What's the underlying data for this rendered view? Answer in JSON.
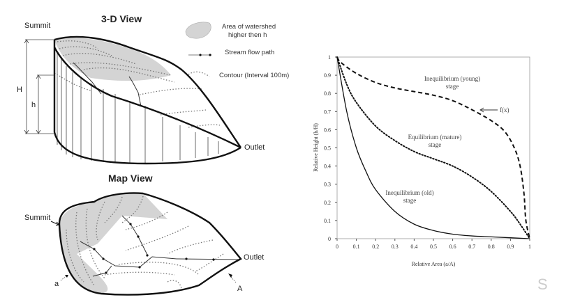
{
  "diagram_3d": {
    "title": "3-D View",
    "summit_label": "Summit",
    "outlet_label": "Outlet",
    "H_label": "H",
    "h_label": "h"
  },
  "legend": {
    "area_label_line1": "Area of watershed",
    "area_label_line2": "higher then h",
    "stream_label": "Stream flow path",
    "contour_label": "Contour (Interval 100m)"
  },
  "map_view": {
    "title": "Map View",
    "summit_label": "Summit",
    "outlet_label": "Outlet",
    "a_label": "a",
    "A_label": "A"
  },
  "colors": {
    "shade": "#d4d4d4",
    "line": "#111111"
  },
  "watermark": "S",
  "chart_data": {
    "type": "line",
    "xlabel": "Relative Area (a/A)",
    "ylabel": "Relative Height (h/H)",
    "xlim": [
      0,
      1
    ],
    "ylim": [
      0,
      1
    ],
    "xticks": [
      "0",
      "0.1",
      "0.2",
      "0.3",
      "0.4",
      "0.5",
      "0.6",
      "0.7",
      "0.8",
      "0.9",
      "1"
    ],
    "yticks": [
      "0",
      "0.1",
      "0.2",
      "0.3",
      "0.4",
      "0.5",
      "0.6",
      "0.7",
      "0.8",
      "0.9",
      "1"
    ],
    "grid": false,
    "series": [
      {
        "style": "dashed",
        "x": [
          0,
          0.02,
          0.1,
          0.2,
          0.3,
          0.4,
          0.5,
          0.6,
          0.7,
          0.8,
          0.87,
          0.92,
          0.95,
          0.97,
          0.98,
          1
        ],
        "y": [
          1,
          0.97,
          0.91,
          0.86,
          0.83,
          0.81,
          0.79,
          0.76,
          0.71,
          0.65,
          0.59,
          0.5,
          0.4,
          0.25,
          0.1,
          0
        ]
      },
      {
        "style": "dotted",
        "x": [
          0,
          0.05,
          0.1,
          0.2,
          0.3,
          0.4,
          0.5,
          0.6,
          0.7,
          0.8,
          0.9,
          0.95,
          1
        ],
        "y": [
          1,
          0.85,
          0.75,
          0.62,
          0.54,
          0.48,
          0.44,
          0.4,
          0.34,
          0.26,
          0.15,
          0.08,
          0
        ]
      },
      {
        "style": "solid",
        "x": [
          0,
          0.05,
          0.1,
          0.15,
          0.2,
          0.3,
          0.4,
          0.5,
          0.6,
          0.7,
          0.8,
          0.9,
          1
        ],
        "y": [
          1,
          0.7,
          0.5,
          0.37,
          0.27,
          0.15,
          0.08,
          0.045,
          0.025,
          0.015,
          0.01,
          0.005,
          0
        ]
      }
    ],
    "annotations": {
      "young_line1": "Inequilibrium (young)",
      "young_line2": "stage",
      "mature_line1": "Equilibrium (mature)",
      "mature_line2": "stage",
      "old_line1": "Inequilibrium (old)",
      "old_line2": "stage",
      "fx": "f(x)"
    }
  }
}
